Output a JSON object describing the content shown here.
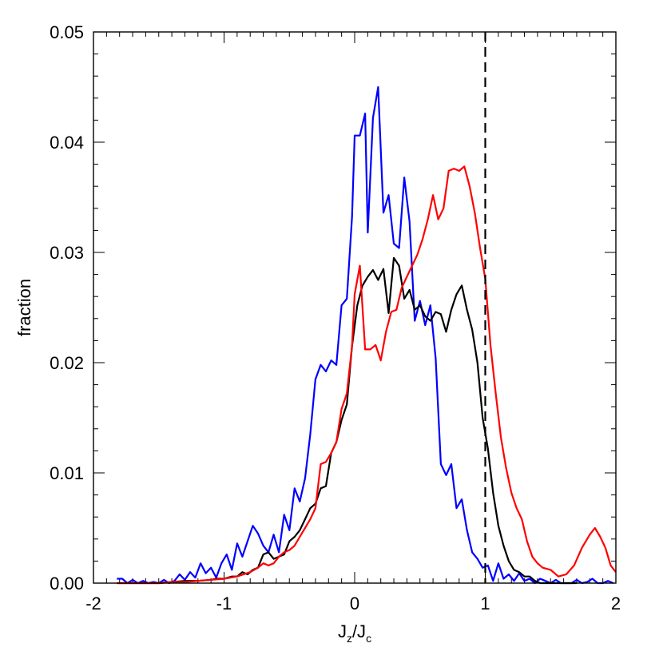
{
  "chart_data": {
    "type": "line",
    "xlabel": {
      "main": "J",
      "sub1": "z",
      "slash": "/J",
      "sub2": "c"
    },
    "ylabel": "fraction",
    "xlim": [
      -2,
      2
    ],
    "ylim": [
      0,
      0.05
    ],
    "x_ticks": [
      "-2",
      "-1",
      "0",
      "1",
      "2"
    ],
    "y_ticks": [
      "0.00",
      "0.01",
      "0.02",
      "0.03",
      "0.04",
      "0.05"
    ],
    "reference_line": {
      "x": 1,
      "style": "dashed",
      "color": "#000000"
    },
    "series": [
      {
        "color": "#0000ff",
        "points": [
          [
            -1.82,
            0.0004
          ],
          [
            -1.78,
            0.0004
          ],
          [
            -1.74,
            0.0
          ],
          [
            -1.7,
            0.0003
          ],
          [
            -1.66,
            0.0
          ],
          [
            -1.62,
            0.0002
          ],
          [
            -1.58,
            0.0
          ],
          [
            -1.54,
            0.0001
          ],
          [
            -1.5,
            0.0
          ],
          [
            -1.46,
            0.0003
          ],
          [
            -1.42,
            0.0
          ],
          [
            -1.38,
            0.0002
          ],
          [
            -1.34,
            0.0008
          ],
          [
            -1.3,
            0.0003
          ],
          [
            -1.26,
            0.001
          ],
          [
            -1.22,
            0.0005
          ],
          [
            -1.18,
            0.0018
          ],
          [
            -1.14,
            0.0009
          ],
          [
            -1.1,
            0.0014
          ],
          [
            -1.06,
            0.0005
          ],
          [
            -1.02,
            0.0018
          ],
          [
            -0.98,
            0.0026
          ],
          [
            -0.94,
            0.0012
          ],
          [
            -0.9,
            0.0036
          ],
          [
            -0.86,
            0.0024
          ],
          [
            -0.82,
            0.0038
          ],
          [
            -0.78,
            0.0052
          ],
          [
            -0.74,
            0.0045
          ],
          [
            -0.7,
            0.0034
          ],
          [
            -0.66,
            0.0028
          ],
          [
            -0.62,
            0.0044
          ],
          [
            -0.58,
            0.0028
          ],
          [
            -0.54,
            0.0062
          ],
          [
            -0.5,
            0.0048
          ],
          [
            -0.46,
            0.0086
          ],
          [
            -0.42,
            0.0074
          ],
          [
            -0.38,
            0.0095
          ],
          [
            -0.34,
            0.0135
          ],
          [
            -0.3,
            0.0185
          ],
          [
            -0.26,
            0.0198
          ],
          [
            -0.22,
            0.0192
          ],
          [
            -0.18,
            0.0202
          ],
          [
            -0.14,
            0.0198
          ],
          [
            -0.1,
            0.0252
          ],
          [
            -0.06,
            0.0258
          ],
          [
            -0.02,
            0.0332
          ],
          [
            0.0,
            0.0406
          ],
          [
            0.04,
            0.0406
          ],
          [
            0.08,
            0.0426
          ],
          [
            0.1,
            0.0318
          ],
          [
            0.14,
            0.0422
          ],
          [
            0.18,
            0.045
          ],
          [
            0.22,
            0.0336
          ],
          [
            0.26,
            0.0352
          ],
          [
            0.3,
            0.0308
          ],
          [
            0.34,
            0.0304
          ],
          [
            0.38,
            0.0368
          ],
          [
            0.42,
            0.0328
          ],
          [
            0.46,
            0.0238
          ],
          [
            0.5,
            0.0256
          ],
          [
            0.54,
            0.0234
          ],
          [
            0.58,
            0.0252
          ],
          [
            0.62,
            0.0204
          ],
          [
            0.66,
            0.0108
          ],
          [
            0.7,
            0.0098
          ],
          [
            0.74,
            0.0108
          ],
          [
            0.78,
            0.0068
          ],
          [
            0.82,
            0.0076
          ],
          [
            0.86,
            0.0048
          ],
          [
            0.9,
            0.0028
          ],
          [
            0.94,
            0.0022
          ],
          [
            0.98,
            0.0014
          ],
          [
            1.02,
            0.0016
          ],
          [
            1.06,
            0.0002
          ],
          [
            1.1,
            0.0018
          ],
          [
            1.14,
            0.0004
          ],
          [
            1.18,
            0.0008
          ],
          [
            1.22,
            0.0002
          ],
          [
            1.26,
            0.0009
          ],
          [
            1.3,
            0.0002
          ],
          [
            1.34,
            0.0004
          ],
          [
            1.38,
            0.0
          ],
          [
            1.42,
            0.0004
          ],
          [
            1.46,
            0.0002
          ],
          [
            1.5,
            0.0
          ],
          [
            1.54,
            0.0003
          ],
          [
            1.58,
            0.0
          ],
          [
            1.62,
            0.0
          ],
          [
            1.66,
            0.0
          ],
          [
            1.7,
            0.0003
          ],
          [
            1.74,
            0.0
          ],
          [
            1.78,
            0.0001
          ],
          [
            1.82,
            0.0004
          ],
          [
            1.86,
            0.0
          ],
          [
            1.9,
            0.0
          ],
          [
            1.94,
            0.0002
          ],
          [
            1.98,
            0.0
          ]
        ]
      },
      {
        "color": "#000000",
        "points": [
          [
            -1.82,
            0.0
          ],
          [
            -1.7,
            0.0
          ],
          [
            -1.6,
            0.0
          ],
          [
            -1.5,
            0.0
          ],
          [
            -1.4,
            0.0001
          ],
          [
            -1.3,
            0.0002
          ],
          [
            -1.2,
            0.0002
          ],
          [
            -1.1,
            0.0003
          ],
          [
            -1.06,
            0.0004
          ],
          [
            -1.0,
            0.0004
          ],
          [
            -0.94,
            0.0006
          ],
          [
            -0.9,
            0.0006
          ],
          [
            -0.86,
            0.001
          ],
          [
            -0.82,
            0.0008
          ],
          [
            -0.78,
            0.0012
          ],
          [
            -0.74,
            0.0014
          ],
          [
            -0.7,
            0.0026
          ],
          [
            -0.66,
            0.0028
          ],
          [
            -0.62,
            0.0022
          ],
          [
            -0.58,
            0.0024
          ],
          [
            -0.54,
            0.0026
          ],
          [
            -0.5,
            0.0038
          ],
          [
            -0.46,
            0.0042
          ],
          [
            -0.42,
            0.0048
          ],
          [
            -0.38,
            0.0058
          ],
          [
            -0.34,
            0.0068
          ],
          [
            -0.3,
            0.0072
          ],
          [
            -0.26,
            0.0086
          ],
          [
            -0.22,
            0.0088
          ],
          [
            -0.18,
            0.0118
          ],
          [
            -0.14,
            0.0128
          ],
          [
            -0.1,
            0.0148
          ],
          [
            -0.06,
            0.0162
          ],
          [
            -0.02,
            0.0215
          ],
          [
            0.02,
            0.0252
          ],
          [
            0.06,
            0.027
          ],
          [
            0.1,
            0.0278
          ],
          [
            0.14,
            0.0284
          ],
          [
            0.18,
            0.0275
          ],
          [
            0.22,
            0.0285
          ],
          [
            0.26,
            0.0245
          ],
          [
            0.3,
            0.0295
          ],
          [
            0.34,
            0.0288
          ],
          [
            0.38,
            0.0258
          ],
          [
            0.42,
            0.0266
          ],
          [
            0.46,
            0.0248
          ],
          [
            0.5,
            0.0252
          ],
          [
            0.54,
            0.0242
          ],
          [
            0.58,
            0.0238
          ],
          [
            0.62,
            0.0246
          ],
          [
            0.66,
            0.0244
          ],
          [
            0.7,
            0.0228
          ],
          [
            0.74,
            0.0248
          ],
          [
            0.78,
            0.0262
          ],
          [
            0.82,
            0.027
          ],
          [
            0.86,
            0.0248
          ],
          [
            0.9,
            0.023
          ],
          [
            0.94,
            0.02
          ],
          [
            0.98,
            0.015
          ],
          [
            1.02,
            0.0122
          ],
          [
            1.06,
            0.0082
          ],
          [
            1.1,
            0.0052
          ],
          [
            1.14,
            0.0034
          ],
          [
            1.18,
            0.002
          ],
          [
            1.22,
            0.0012
          ],
          [
            1.26,
            0.001
          ],
          [
            1.3,
            0.0006
          ],
          [
            1.34,
            0.0006
          ],
          [
            1.38,
            0.0002
          ],
          [
            1.42,
            0.0
          ],
          [
            1.46,
            0.0
          ],
          [
            1.5,
            0.0
          ],
          [
            1.6,
            0.0
          ],
          [
            1.7,
            0.0
          ]
        ]
      },
      {
        "color": "#ff0000",
        "points": [
          [
            -1.82,
            0.0
          ],
          [
            -1.7,
            0.0
          ],
          [
            -1.6,
            0.0
          ],
          [
            -1.5,
            0.0
          ],
          [
            -1.4,
            0.0001
          ],
          [
            -1.3,
            0.0001
          ],
          [
            -1.2,
            0.0002
          ],
          [
            -1.1,
            0.0003
          ],
          [
            -1.0,
            0.0004
          ],
          [
            -0.9,
            0.0006
          ],
          [
            -0.8,
            0.001
          ],
          [
            -0.74,
            0.0014
          ],
          [
            -0.7,
            0.0018
          ],
          [
            -0.66,
            0.0016
          ],
          [
            -0.62,
            0.0018
          ],
          [
            -0.58,
            0.0024
          ],
          [
            -0.54,
            0.0028
          ],
          [
            -0.5,
            0.003
          ],
          [
            -0.46,
            0.0034
          ],
          [
            -0.42,
            0.0042
          ],
          [
            -0.38,
            0.005
          ],
          [
            -0.34,
            0.0058
          ],
          [
            -0.3,
            0.0068
          ],
          [
            -0.26,
            0.0108
          ],
          [
            -0.22,
            0.011
          ],
          [
            -0.18,
            0.0118
          ],
          [
            -0.14,
            0.0128
          ],
          [
            -0.1,
            0.0158
          ],
          [
            -0.06,
            0.0172
          ],
          [
            -0.02,
            0.0215
          ],
          [
            0.0,
            0.0262
          ],
          [
            0.04,
            0.0288
          ],
          [
            0.08,
            0.0212
          ],
          [
            0.12,
            0.0212
          ],
          [
            0.16,
            0.0216
          ],
          [
            0.2,
            0.0202
          ],
          [
            0.24,
            0.0228
          ],
          [
            0.28,
            0.0246
          ],
          [
            0.32,
            0.0248
          ],
          [
            0.36,
            0.0268
          ],
          [
            0.4,
            0.0278
          ],
          [
            0.44,
            0.0288
          ],
          [
            0.48,
            0.0298
          ],
          [
            0.52,
            0.0312
          ],
          [
            0.56,
            0.033
          ],
          [
            0.6,
            0.0352
          ],
          [
            0.64,
            0.033
          ],
          [
            0.68,
            0.034
          ],
          [
            0.72,
            0.0374
          ],
          [
            0.76,
            0.0376
          ],
          [
            0.8,
            0.0374
          ],
          [
            0.84,
            0.0378
          ],
          [
            0.88,
            0.036
          ],
          [
            0.92,
            0.0336
          ],
          [
            0.96,
            0.0304
          ],
          [
            1.0,
            0.0276
          ],
          [
            1.04,
            0.0216
          ],
          [
            1.08,
            0.0172
          ],
          [
            1.12,
            0.0132
          ],
          [
            1.16,
            0.0104
          ],
          [
            1.2,
            0.0082
          ],
          [
            1.24,
            0.0068
          ],
          [
            1.28,
            0.0058
          ],
          [
            1.32,
            0.0038
          ],
          [
            1.36,
            0.0024
          ],
          [
            1.4,
            0.0018
          ],
          [
            1.44,
            0.0014
          ],
          [
            1.5,
            0.0012
          ],
          [
            1.56,
            0.0006
          ],
          [
            1.62,
            0.0008
          ],
          [
            1.68,
            0.0016
          ],
          [
            1.74,
            0.0032
          ],
          [
            1.8,
            0.0044
          ],
          [
            1.84,
            0.005
          ],
          [
            1.88,
            0.0042
          ],
          [
            1.92,
            0.0032
          ],
          [
            1.96,
            0.0016
          ],
          [
            2.0,
            0.001
          ]
        ]
      }
    ]
  }
}
